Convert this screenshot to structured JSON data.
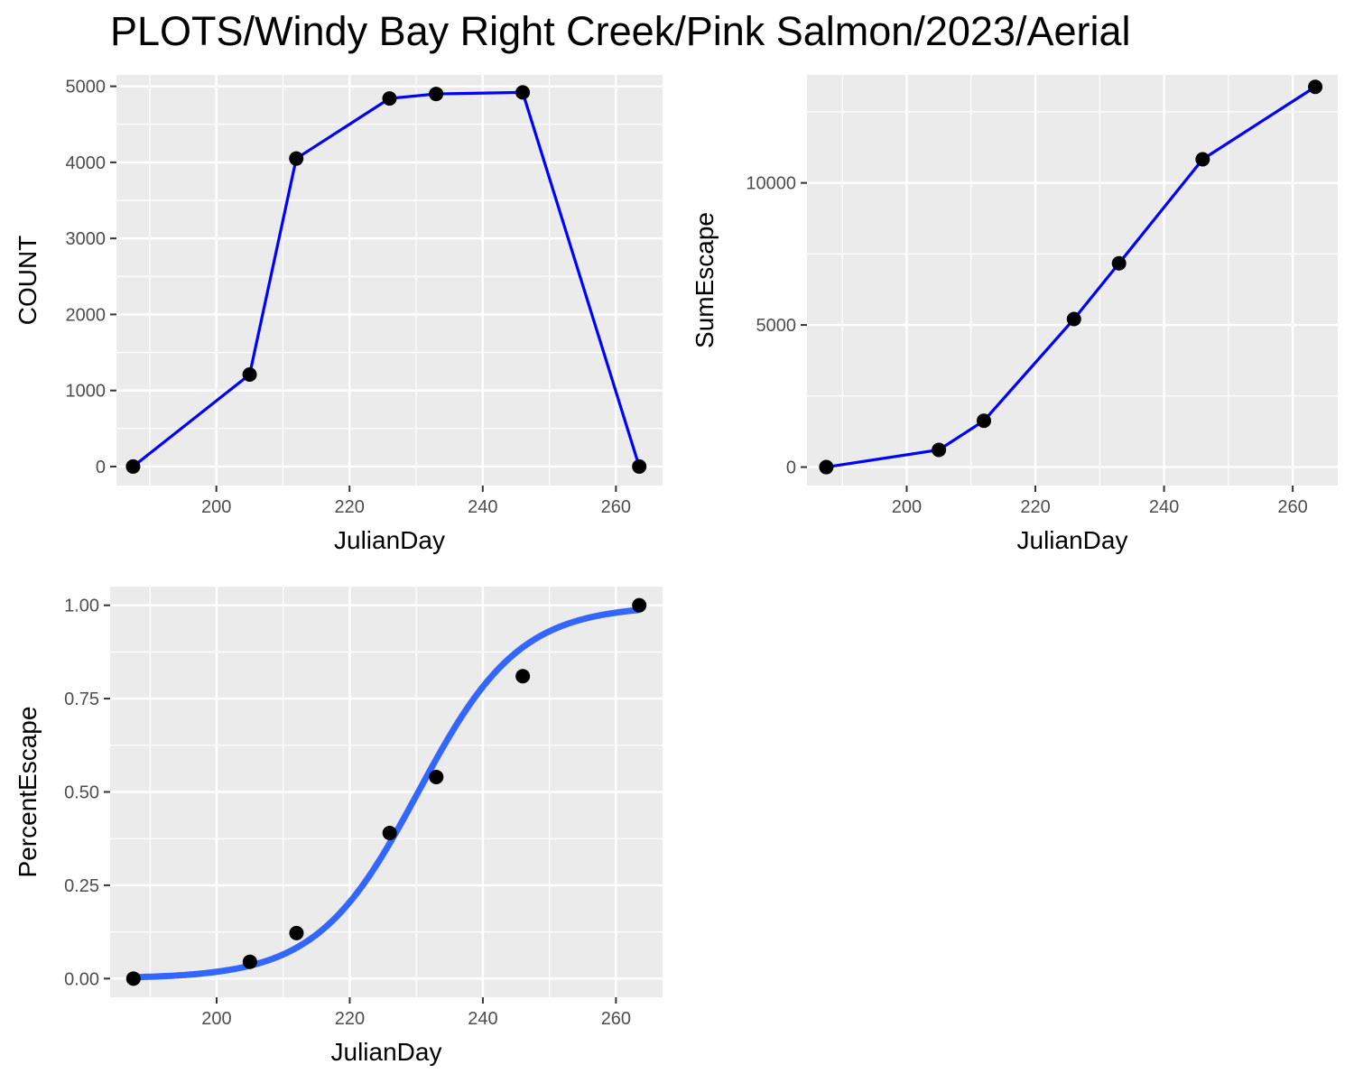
{
  "title": "PLOTS/Windy Bay Right Creek/Pink Salmon/2023/Aerial",
  "chart_data": [
    {
      "type": "line",
      "xlabel": "JulianDay",
      "ylabel": "COUNT",
      "xlim": [
        185,
        267
      ],
      "ylim": [
        -250,
        5150
      ],
      "xticks": [
        200,
        220,
        240,
        260
      ],
      "yticks": [
        0,
        1000,
        2000,
        3000,
        4000,
        5000
      ],
      "ytick_labels": [
        "0",
        "1000",
        "2000",
        "3000",
        "4000",
        "5000"
      ],
      "x": [
        187.5,
        205,
        212,
        226,
        233,
        246,
        263.5
      ],
      "y": [
        0,
        1210,
        4050,
        4840,
        4900,
        4920,
        0
      ],
      "line_color": "#0000ff",
      "point_color": "#000000",
      "grid": true
    },
    {
      "type": "line",
      "xlabel": "JulianDay",
      "ylabel": "SumEscape",
      "xlim": [
        184.5,
        267
      ],
      "ylim": [
        -650,
        13800
      ],
      "xticks": [
        200,
        220,
        240,
        260
      ],
      "yticks": [
        0,
        5000,
        10000
      ],
      "ytick_labels": [
        "0",
        "5000",
        "10000"
      ],
      "x": [
        187.5,
        205,
        212,
        226,
        233,
        246,
        263.5
      ],
      "y": [
        0,
        605,
        1630,
        5210,
        7170,
        10830,
        13380
      ],
      "line_color": "#0000ff",
      "point_color": "#000000",
      "grid": true
    },
    {
      "type": "scatter",
      "xlabel": "JulianDay",
      "ylabel": "PercentEscape",
      "xlim": [
        184,
        267
      ],
      "ylim": [
        -0.05,
        1.05
      ],
      "xticks": [
        200,
        220,
        240,
        260
      ],
      "yticks": [
        0,
        0.25,
        0.5,
        0.75,
        1.0
      ],
      "ytick_labels": [
        "0.00",
        "0.25",
        "0.50",
        "0.75",
        "1.00"
      ],
      "x": [
        187.5,
        205,
        212,
        226,
        233,
        246,
        263.5
      ],
      "y": [
        0,
        0.045,
        0.122,
        0.39,
        0.54,
        0.81,
        1.0
      ],
      "fit": {
        "type": "logistic",
        "midpoint": 230.3,
        "scale": 7.6
      },
      "fit_color": "#3366ff",
      "point_color": "#000000",
      "grid": true
    }
  ]
}
